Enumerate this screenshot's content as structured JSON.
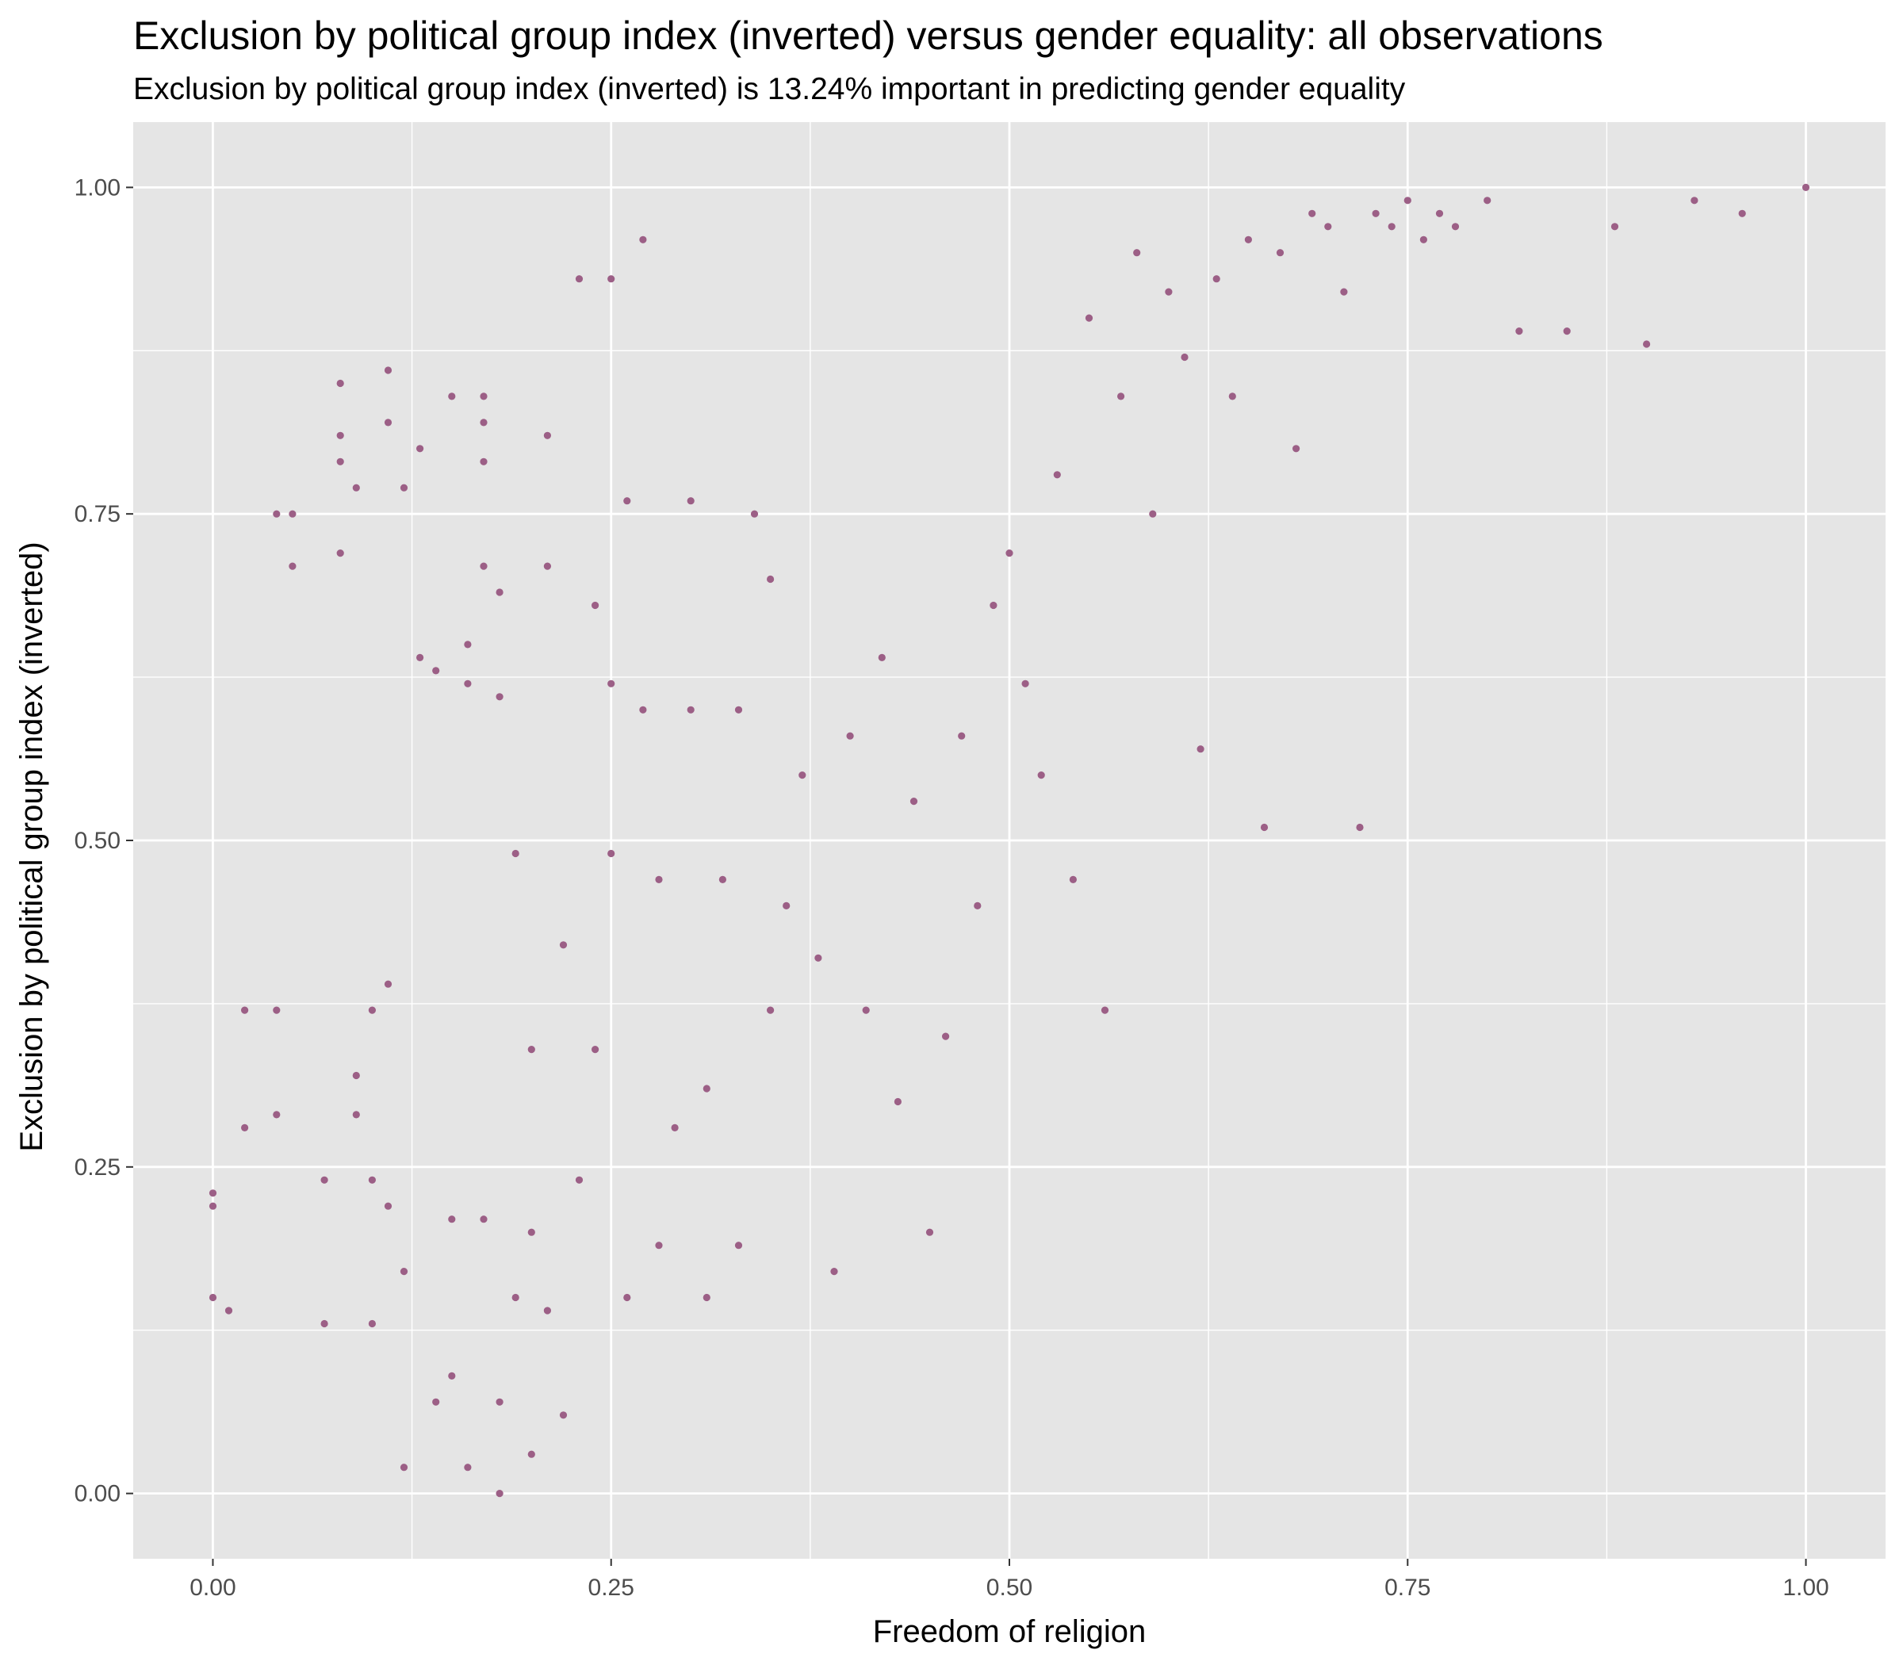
{
  "chart_data": {
    "type": "scatter",
    "title": "Exclusion by political group index (inverted) versus gender equality: all observations",
    "subtitle": "Exclusion by political group index (inverted) is 13.24% important in predicting gender equality",
    "xlabel": "Freedom of religion",
    "ylabel": "Exclusion by political group index (inverted)",
    "xlim": [
      -0.05,
      1.05
    ],
    "ylim": [
      -0.05,
      1.05
    ],
    "x_ticks": [
      0.0,
      0.25,
      0.5,
      0.75,
      1.0
    ],
    "x_tick_labels": [
      "0.00",
      "0.25",
      "0.50",
      "0.75",
      "1.00"
    ],
    "y_ticks": [
      0.0,
      0.25,
      0.5,
      0.75,
      1.0
    ],
    "y_tick_labels": [
      "0.00",
      "0.25",
      "0.50",
      "0.75",
      "1.00"
    ],
    "grid": true,
    "legend": "none",
    "colors": {
      "point": "#9c5f86",
      "panel_background": "#e5e5e5",
      "grid": "#ffffff"
    },
    "series": [
      {
        "x": [
          0.0,
          0.0,
          0.0,
          0.01,
          0.02,
          0.02,
          0.04,
          0.04,
          0.04,
          0.05,
          0.05,
          0.07,
          0.07,
          0.08,
          0.08,
          0.08,
          0.08,
          0.09,
          0.09,
          0.09,
          0.1,
          0.1,
          0.1,
          0.11,
          0.11,
          0.11,
          0.11,
          0.12,
          0.12,
          0.12,
          0.13,
          0.13,
          0.14,
          0.14,
          0.15,
          0.15,
          0.15,
          0.16,
          0.16,
          0.16,
          0.17,
          0.17,
          0.17,
          0.17,
          0.17,
          0.18,
          0.18,
          0.18,
          0.18,
          0.19,
          0.19,
          0.2,
          0.2,
          0.2,
          0.21,
          0.21,
          0.21,
          0.22,
          0.22,
          0.23,
          0.23,
          0.24,
          0.24,
          0.25,
          0.25,
          0.25,
          0.26,
          0.26,
          0.27,
          0.27,
          0.28,
          0.28,
          0.29,
          0.3,
          0.3,
          0.31,
          0.31,
          0.32,
          0.33,
          0.33,
          0.34,
          0.35,
          0.35,
          0.36,
          0.37,
          0.38,
          0.39,
          0.4,
          0.41,
          0.42,
          0.43,
          0.44,
          0.45,
          0.46,
          0.47,
          0.48,
          0.49,
          0.5,
          0.51,
          0.52,
          0.53,
          0.54,
          0.55,
          0.56,
          0.57,
          0.58,
          0.59,
          0.6,
          0.61,
          0.62,
          0.63,
          0.64,
          0.65,
          0.66,
          0.67,
          0.68,
          0.69,
          0.7,
          0.71,
          0.72,
          0.73,
          0.74,
          0.75,
          0.76,
          0.77,
          0.78,
          0.8,
          0.82,
          0.85,
          0.88,
          0.9,
          0.93,
          0.96,
          1.0
        ],
        "y": [
          0.23,
          0.22,
          0.15,
          0.14,
          0.37,
          0.28,
          0.29,
          0.37,
          0.75,
          0.71,
          0.75,
          0.24,
          0.13,
          0.85,
          0.81,
          0.79,
          0.72,
          0.77,
          0.29,
          0.32,
          0.37,
          0.24,
          0.13,
          0.86,
          0.82,
          0.39,
          0.22,
          0.77,
          0.17,
          0.02,
          0.8,
          0.64,
          0.63,
          0.07,
          0.84,
          0.21,
          0.09,
          0.65,
          0.62,
          0.02,
          0.84,
          0.82,
          0.79,
          0.71,
          0.21,
          0.69,
          0.61,
          0.07,
          0.0,
          0.49,
          0.15,
          0.34,
          0.2,
          0.03,
          0.81,
          0.71,
          0.14,
          0.42,
          0.06,
          0.93,
          0.24,
          0.68,
          0.34,
          0.93,
          0.62,
          0.49,
          0.76,
          0.15,
          0.96,
          0.6,
          0.47,
          0.19,
          0.28,
          0.6,
          0.76,
          0.31,
          0.15,
          0.47,
          0.6,
          0.19,
          0.75,
          0.7,
          0.37,
          0.45,
          0.55,
          0.41,
          0.17,
          0.58,
          0.37,
          0.64,
          0.3,
          0.53,
          0.2,
          0.35,
          0.58,
          0.45,
          0.68,
          0.72,
          0.62,
          0.55,
          0.78,
          0.47,
          0.9,
          0.37,
          0.84,
          0.95,
          0.75,
          0.92,
          0.87,
          0.57,
          0.93,
          0.84,
          0.96,
          0.51,
          0.95,
          0.8,
          0.98,
          0.97,
          0.92,
          0.51,
          0.98,
          0.97,
          0.99,
          0.96,
          0.98,
          0.97,
          0.99,
          0.89,
          0.89,
          0.97,
          0.88,
          0.99,
          0.98,
          1.0
        ]
      }
    ]
  }
}
